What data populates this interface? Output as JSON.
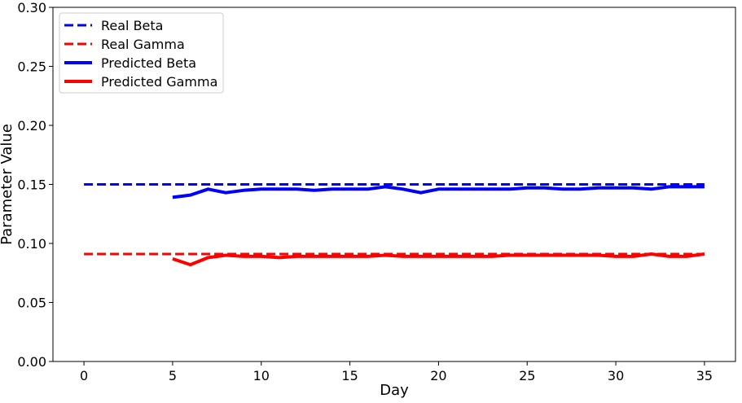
{
  "chart_data": {
    "type": "line",
    "title": "",
    "xlabel": "Day",
    "ylabel": "Parameter Value",
    "xlim": [
      -1.75,
      36.75
    ],
    "ylim": [
      0.0,
      0.3
    ],
    "xticks": [
      0,
      5,
      10,
      15,
      20,
      25,
      30,
      35
    ],
    "xtick_labels": [
      "0",
      "5",
      "10",
      "15",
      "20",
      "25",
      "30",
      "35"
    ],
    "yticks": [
      0.0,
      0.05,
      0.1,
      0.15,
      0.2,
      0.25,
      0.3
    ],
    "ytick_labels": [
      "0.00",
      "0.05",
      "0.10",
      "0.15",
      "0.20",
      "0.25",
      "0.30"
    ],
    "grid": false,
    "legend_position": "upper-left",
    "series": [
      {
        "name": "Real Beta",
        "color": "#0000ff",
        "style": "dashed",
        "x": [
          0,
          35
        ],
        "y": [
          0.15,
          0.15
        ]
      },
      {
        "name": "Real Gamma",
        "color": "#ff0000",
        "style": "dashed",
        "x": [
          0,
          35
        ],
        "y": [
          0.091,
          0.091
        ]
      },
      {
        "name": "Predicted Beta",
        "color": "#0000ff",
        "style": "solid",
        "x": [
          5,
          6,
          7,
          8,
          9,
          10,
          11,
          12,
          13,
          14,
          15,
          16,
          17,
          18,
          19,
          20,
          21,
          22,
          23,
          24,
          25,
          26,
          27,
          28,
          29,
          30,
          31,
          32,
          33,
          34,
          35
        ],
        "y": [
          0.139,
          0.141,
          0.146,
          0.143,
          0.145,
          0.146,
          0.146,
          0.146,
          0.145,
          0.146,
          0.146,
          0.146,
          0.148,
          0.146,
          0.143,
          0.146,
          0.146,
          0.146,
          0.146,
          0.146,
          0.147,
          0.147,
          0.146,
          0.146,
          0.147,
          0.147,
          0.147,
          0.146,
          0.148,
          0.148,
          0.148
        ]
      },
      {
        "name": "Predicted Gamma",
        "color": "#ff0000",
        "style": "solid",
        "x": [
          5,
          6,
          7,
          8,
          9,
          10,
          11,
          12,
          13,
          14,
          15,
          16,
          17,
          18,
          19,
          20,
          21,
          22,
          23,
          24,
          25,
          26,
          27,
          28,
          29,
          30,
          31,
          32,
          33,
          34,
          35
        ],
        "y": [
          0.087,
          0.082,
          0.088,
          0.09,
          0.089,
          0.089,
          0.088,
          0.089,
          0.089,
          0.089,
          0.089,
          0.089,
          0.09,
          0.089,
          0.089,
          0.089,
          0.089,
          0.089,
          0.089,
          0.09,
          0.09,
          0.09,
          0.09,
          0.09,
          0.09,
          0.089,
          0.089,
          0.091,
          0.089,
          0.089,
          0.091
        ]
      }
    ]
  }
}
